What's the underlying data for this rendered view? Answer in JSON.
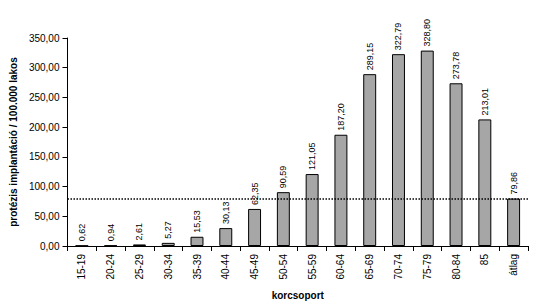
{
  "chart_data": {
    "type": "bar",
    "x_label": "korcsoport",
    "y_label": "protézis implantáció / 100.000 lakos",
    "categories": [
      "15-19",
      "20-24",
      "25-29",
      "30-34",
      "35-39",
      "40-44",
      "45-49",
      "50-54",
      "55-59",
      "60-64",
      "65-69",
      "70-74",
      "75-79",
      "80-84",
      "85",
      "átlag"
    ],
    "values": [
      0.62,
      0.94,
      2.61,
      5.27,
      15.53,
      30.13,
      62.35,
      90.59,
      121.05,
      187.2,
      289.15,
      322.79,
      328.8,
      273.78,
      213.01,
      79.86
    ],
    "value_labels": [
      "0,62",
      "0,94",
      "2,61",
      "5,27",
      "15,53",
      "30,13",
      "62,35",
      "90,59",
      "121,05",
      "187,20",
      "289,15",
      "322,79",
      "328,80",
      "273,78",
      "213,01",
      "79,86"
    ],
    "hline": 79.86,
    "color": "#a6a6a6",
    "ylim": [
      0,
      350
    ],
    "yticks": [
      {
        "value": 0,
        "label": "0,00"
      },
      {
        "value": 50,
        "label": "50,00"
      },
      {
        "value": 100,
        "label": "100,00"
      },
      {
        "value": 150,
        "label": "150,00"
      },
      {
        "value": 200,
        "label": "200,00"
      },
      {
        "value": 250,
        "label": "250,00"
      },
      {
        "value": 300,
        "label": "300,00"
      },
      {
        "value": 350,
        "label": "350,00"
      }
    ],
    "grid": false,
    "data_labels": true
  }
}
